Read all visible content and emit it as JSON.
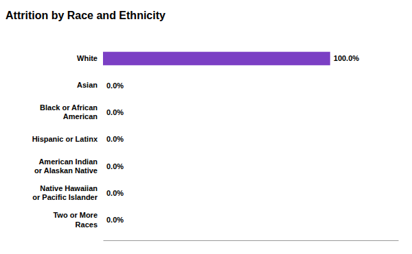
{
  "chart_data": {
    "type": "bar",
    "orientation": "horizontal",
    "title": "Attrition by Race and Ethnicity",
    "categories": [
      "Two or More\nRaces",
      "Native Hawaiian\nor Pacific Islander",
      "American Indian\nor Alaskan Native",
      "Hispanic or Latinx",
      "Black or African\nAmerican",
      "Asian",
      "White"
    ],
    "values": [
      0.0,
      0.0,
      0.0,
      0.0,
      0.0,
      0.0,
      100.0
    ],
    "value_labels": [
      "0.0%",
      "0.0%",
      "0.0%",
      "0.0%",
      "0.0%",
      "0.0%",
      "100.0%"
    ],
    "data_labels": true,
    "color": "#7B3FC4",
    "xlim": [
      0,
      130
    ],
    "tick_labels": "y"
  }
}
